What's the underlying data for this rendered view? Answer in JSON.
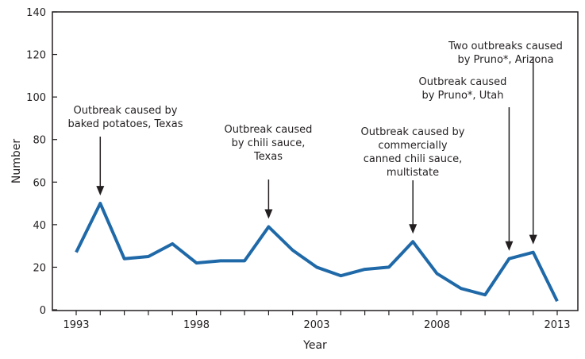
{
  "chart_data": {
    "type": "line",
    "xlabel": "Year",
    "ylabel": "Number",
    "ylim": [
      0,
      140
    ],
    "xlim": [
      1993,
      2013
    ],
    "yticks": [
      "0",
      "20",
      "40",
      "60",
      "80",
      "100",
      "120",
      "140"
    ],
    "xtick_labels": [
      "1993",
      "1998",
      "2003",
      "2008",
      "2013"
    ],
    "grid": false,
    "line_color": "#1f69a8",
    "x": [
      1993,
      1994,
      1995,
      1996,
      1997,
      1998,
      1999,
      2000,
      2001,
      2002,
      2003,
      2004,
      2005,
      2006,
      2007,
      2008,
      2009,
      2010,
      2011,
      2012,
      2013
    ],
    "values": [
      27,
      50,
      24,
      25,
      31,
      22,
      23,
      23,
      39,
      28,
      20,
      16,
      19,
      20,
      32,
      17,
      10,
      7,
      24,
      27,
      4
    ],
    "annotations": [
      {
        "year": 1994,
        "lines": [
          "Outbreak caused by",
          "baked potatoes, Texas"
        ]
      },
      {
        "year": 2001,
        "lines": [
          "Outbreak caused",
          "by chili sauce,",
          "Texas"
        ]
      },
      {
        "year": 2007,
        "lines": [
          "Outbreak caused by",
          "commercially",
          "canned chili sauce,",
          "multistate"
        ]
      },
      {
        "year": 2011,
        "lines": [
          "Outbreak caused",
          "by Pruno*, Utah"
        ]
      },
      {
        "year": 2012,
        "lines": [
          "Two outbreaks caused",
          "by Pruno*, Arizona"
        ]
      }
    ]
  }
}
